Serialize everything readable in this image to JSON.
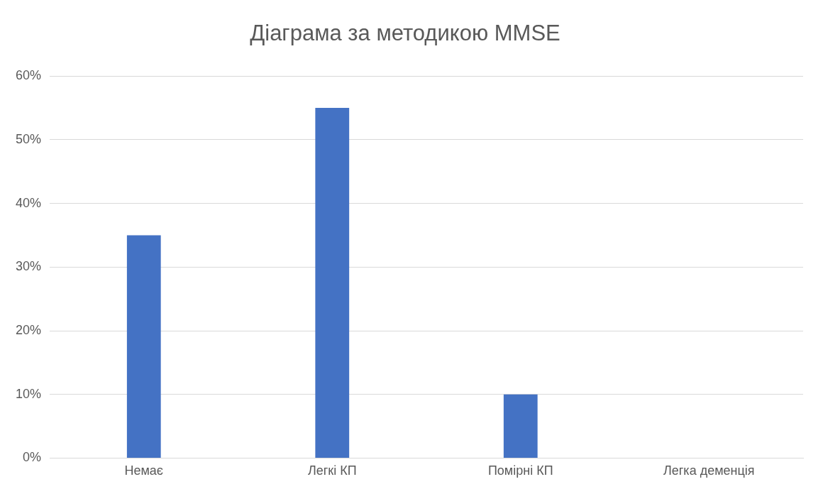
{
  "chart_data": {
    "type": "bar",
    "title": "Діаграма за методикою MMSE",
    "categories": [
      "Немає",
      "Легкі КП",
      "Помірні КП",
      "Легка деменція"
    ],
    "values": [
      35,
      55,
      10,
      0
    ],
    "color": "#4472c4",
    "ylim": [
      0,
      60
    ],
    "yticks": [
      {
        "value": 0,
        "label": "0%"
      },
      {
        "value": 10,
        "label": "10%"
      },
      {
        "value": 20,
        "label": "20%"
      },
      {
        "value": 30,
        "label": "30%"
      },
      {
        "value": 40,
        "label": "40%"
      },
      {
        "value": 50,
        "label": "50%"
      },
      {
        "value": 60,
        "label": "60%"
      }
    ],
    "grid": "y",
    "legend": false
  }
}
